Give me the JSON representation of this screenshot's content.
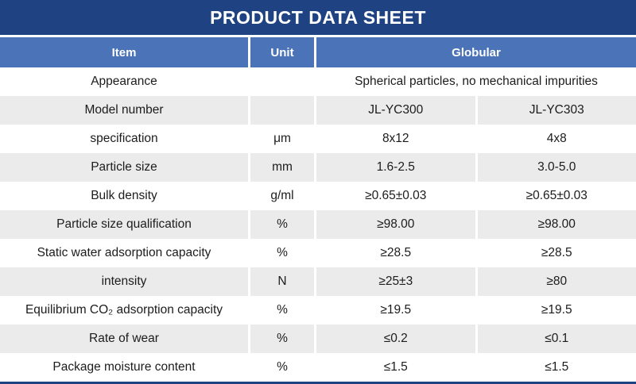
{
  "title": "PRODUCT DATA SHEET",
  "colors": {
    "title_bar": "#1e4282",
    "header_blue": "#4a73b8",
    "row_gray": "#ebebeb",
    "row_white": "#ffffff",
    "text": "#1c1c1c"
  },
  "table": {
    "headers": {
      "item": "Item",
      "unit": "Unit",
      "globular": "Globular"
    },
    "rows": [
      {
        "item": "Appearance",
        "unit": "",
        "span": "Spherical particles, no mechanical impurities"
      },
      {
        "item": "Model number",
        "unit": "",
        "v1": "JL-YC300",
        "v2": "JL-YC303"
      },
      {
        "item": "specification",
        "unit": "μm",
        "v1": "8x12",
        "v2": "4x8"
      },
      {
        "item": "Particle size",
        "unit": "mm",
        "v1": "1.6-2.5",
        "v2": "3.0-5.0"
      },
      {
        "item": "Bulk density",
        "unit": "g/ml",
        "v1": "≥0.65±0.03",
        "v2": "≥0.65±0.03"
      },
      {
        "item": "Particle size qualification",
        "unit": "%",
        "v1": "≥98.00",
        "v2": "≥98.00"
      },
      {
        "item": "Static water adsorption capacity",
        "unit": "%",
        "v1": "≥28.5",
        "v2": "≥28.5"
      },
      {
        "item": "intensity",
        "unit": "N",
        "v1": "≥25±3",
        "v2": "≥80"
      },
      {
        "item": "Equilibrium CO₂ adsorption capacity",
        "unit": "%",
        "v1": "≥19.5",
        "v2": "≥19.5"
      },
      {
        "item": "Rate of wear",
        "unit": "%",
        "v1": "≤0.2",
        "v2": "≤0.1"
      },
      {
        "item": "Package moisture content",
        "unit": "%",
        "v1": "≤1.5",
        "v2": "≤1.5"
      }
    ]
  }
}
